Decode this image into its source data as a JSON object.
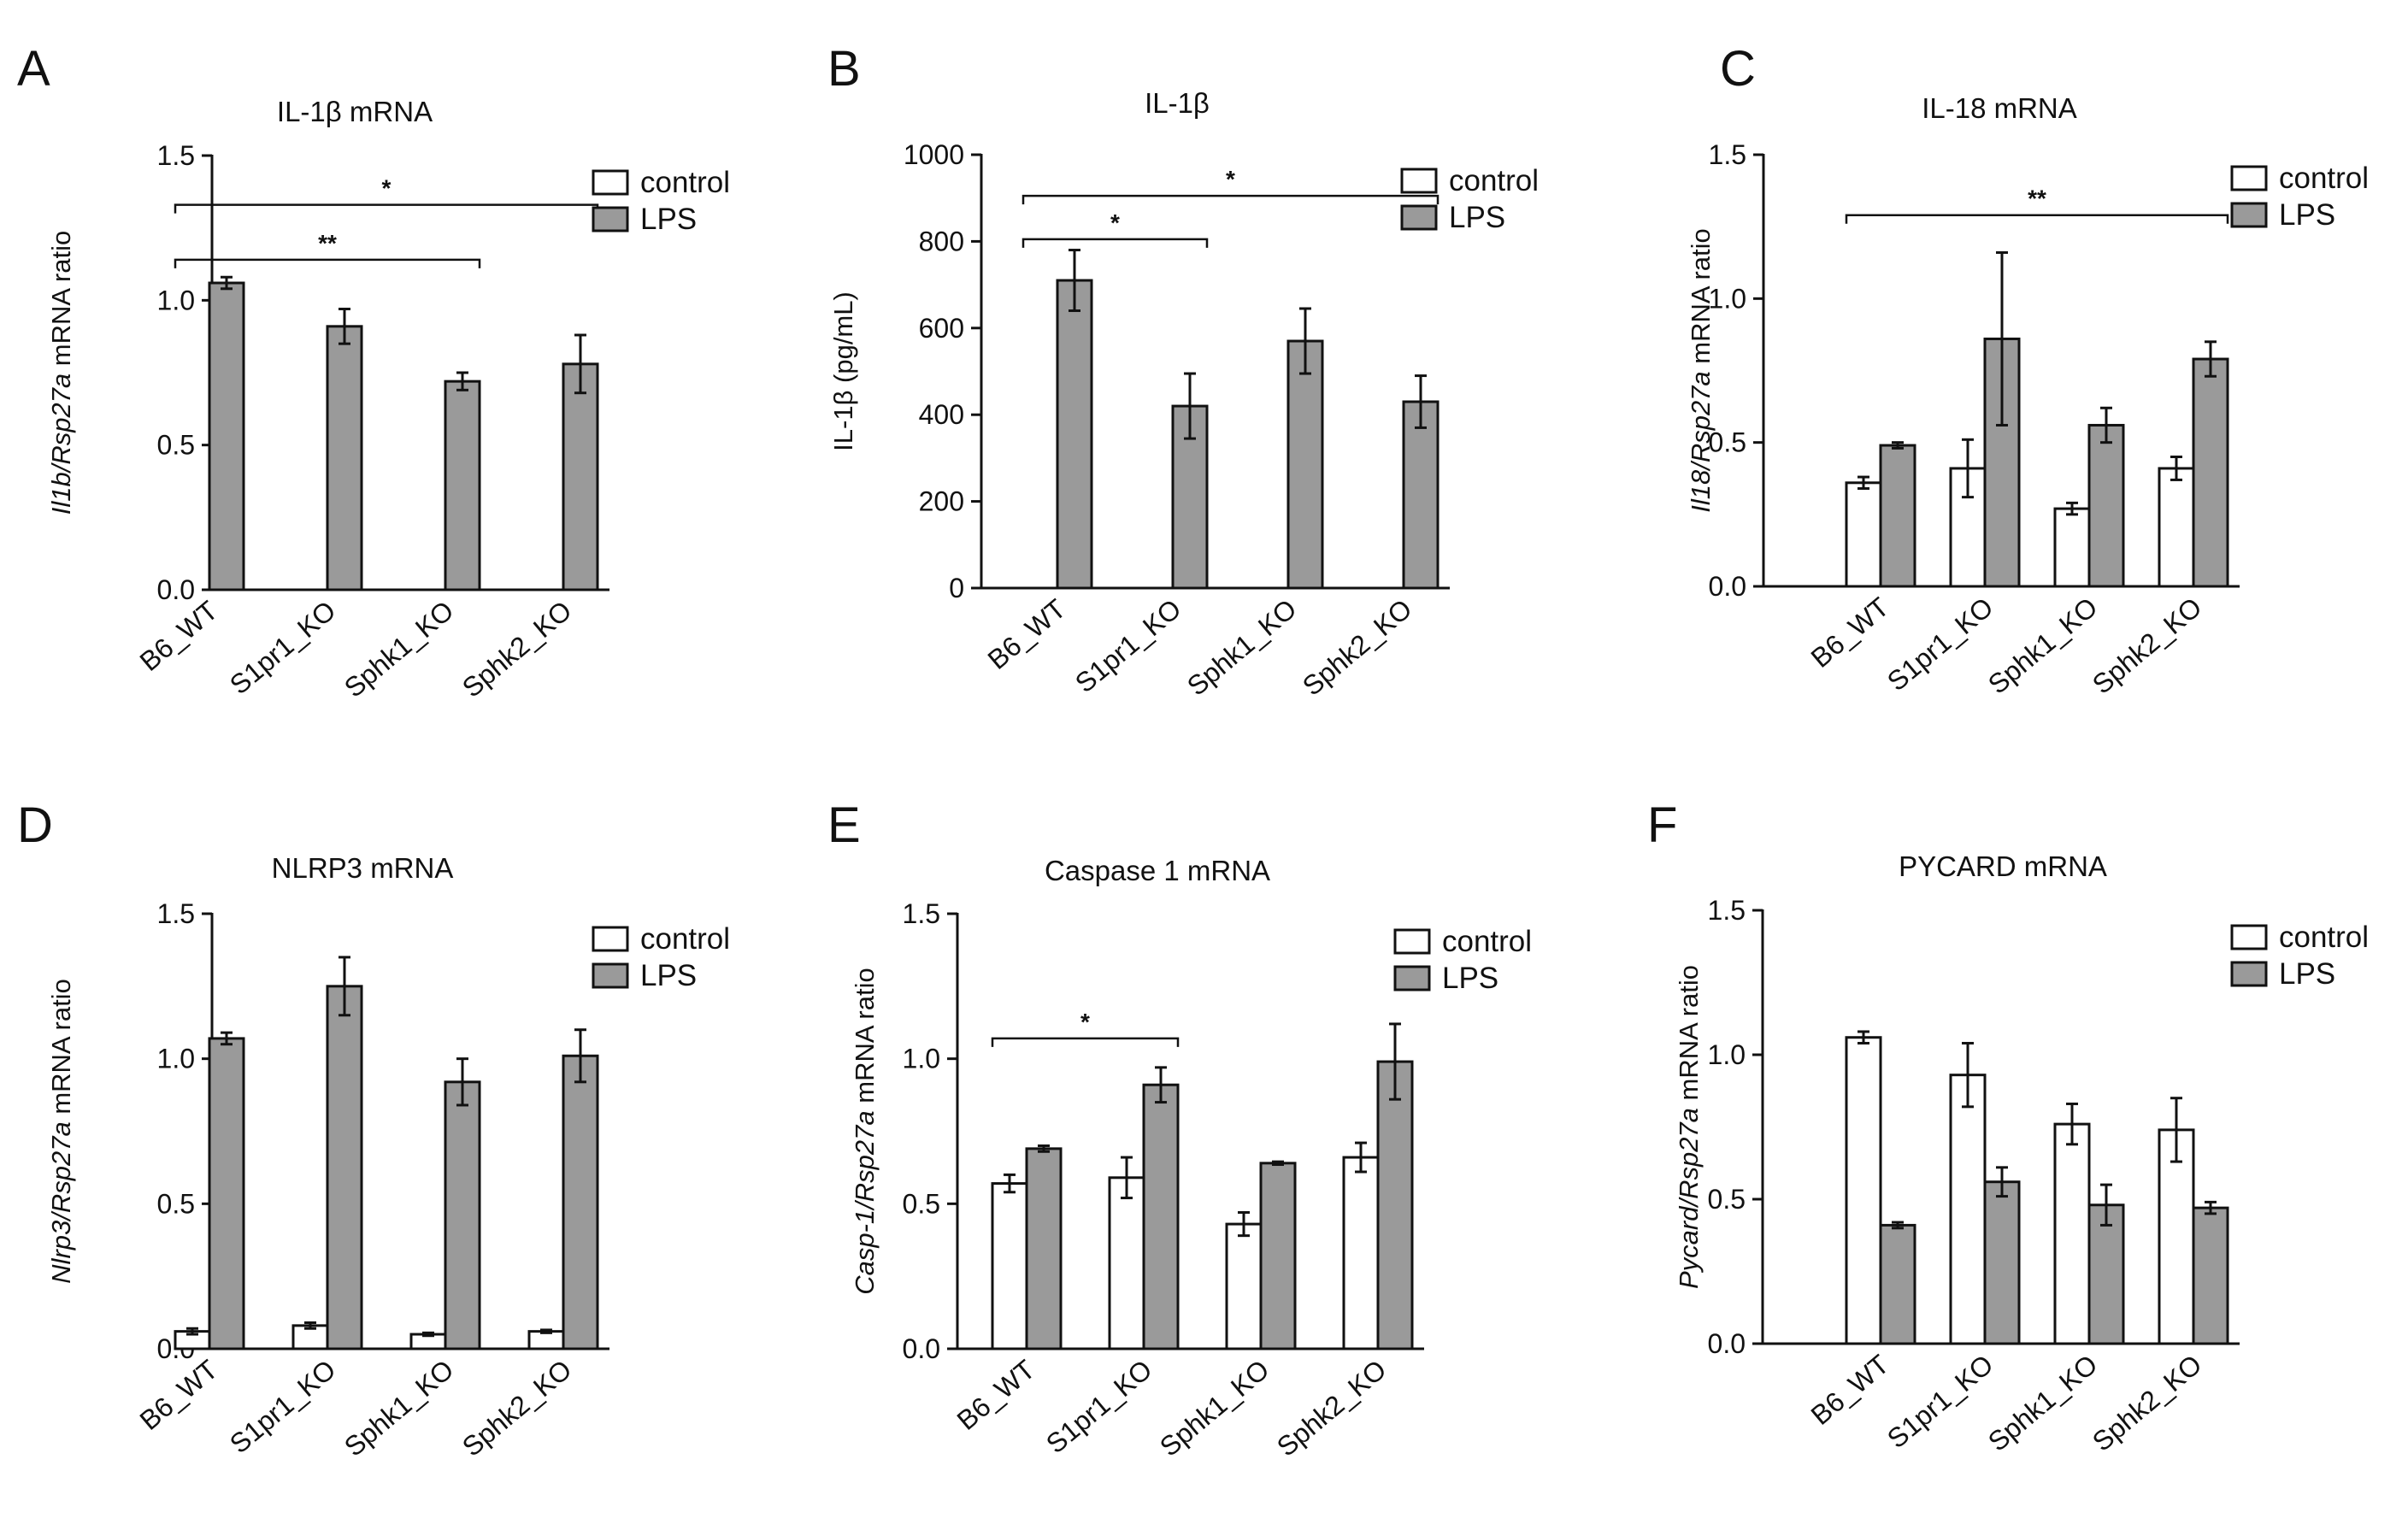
{
  "figure": {
    "legend_labels": [
      "control",
      "LPS"
    ],
    "colors": {
      "control": "#ffffff",
      "LPS": "#9a9a9a",
      "stroke": "#111111",
      "background": "#ffffff"
    }
  },
  "chart_data": [
    {
      "panel": "A",
      "type": "bar",
      "title": "IL-1β mRNA",
      "ylabel_parts": [
        {
          "text": "Il1b/Rsp27a",
          "italic": true
        },
        {
          "text": " mRNA ratio",
          "italic": false
        }
      ],
      "ylim": [
        0,
        1.5
      ],
      "yticks": [
        0,
        0.5,
        1.0,
        1.5
      ],
      "ytick_labels": [
        "0.0",
        "0.5",
        "1.0",
        "1.5"
      ],
      "categories": [
        "B6_WT",
        "S1pr1_KO",
        "Sphk1_KO",
        "Sphk2_KO"
      ],
      "series": [
        {
          "name": "control",
          "values": [
            0.0,
            0.0,
            0.0,
            0.0
          ],
          "errors": [
            0,
            0,
            0,
            0
          ]
        },
        {
          "name": "LPS",
          "values": [
            1.06,
            0.91,
            0.72,
            0.78
          ],
          "errors": [
            0.02,
            0.06,
            0.03,
            0.1
          ]
        }
      ],
      "significance": [
        {
          "from": 0,
          "to": 2,
          "y": 1.14,
          "label": "**"
        },
        {
          "from": 0,
          "to": 3,
          "y": 1.33,
          "label": "*"
        }
      ]
    },
    {
      "panel": "B",
      "type": "bar",
      "title": "IL-1β",
      "ylabel_parts": [
        {
          "text": "IL-1β (pg/mL)",
          "italic": false
        }
      ],
      "ylim": [
        0,
        1000
      ],
      "yticks": [
        0,
        200,
        400,
        600,
        800,
        1000
      ],
      "ytick_labels": [
        "0",
        "200",
        "400",
        "600",
        "800",
        "1000"
      ],
      "categories": [
        "B6_WT",
        "S1pr1_KO",
        "Sphk1_KO",
        "Sphk2_KO"
      ],
      "series": [
        {
          "name": "control",
          "values": [
            0,
            0,
            0,
            0
          ],
          "errors": [
            0,
            0,
            0,
            0
          ]
        },
        {
          "name": "LPS",
          "values": [
            710,
            420,
            570,
            430
          ],
          "errors": [
            70,
            75,
            75,
            60
          ]
        }
      ],
      "significance": [
        {
          "from": 0,
          "to": 1,
          "y": 805,
          "label": "*"
        },
        {
          "from": 0,
          "to": 3,
          "y": 905,
          "label": "*"
        }
      ]
    },
    {
      "panel": "C",
      "type": "bar",
      "title": "IL-18 mRNA",
      "ylabel_parts": [
        {
          "text": "Il18/Rsp27a",
          "italic": true
        },
        {
          "text": " mRNA ratio",
          "italic": false
        }
      ],
      "ylim": [
        0,
        1.5
      ],
      "yticks": [
        0,
        0.5,
        1.0,
        1.5
      ],
      "ytick_labels": [
        "0.0",
        "0.5",
        "1.0",
        "1.5"
      ],
      "categories": [
        "B6_WT",
        "S1pr1_KO",
        "Sphk1_KO",
        "Sphk2_KO"
      ],
      "series": [
        {
          "name": "control",
          "values": [
            0.36,
            0.41,
            0.27,
            0.41
          ],
          "errors": [
            0.02,
            0.1,
            0.02,
            0.04
          ]
        },
        {
          "name": "LPS",
          "values": [
            0.49,
            0.86,
            0.56,
            0.79
          ],
          "errors": [
            0.01,
            0.3,
            0.06,
            0.06
          ]
        }
      ],
      "significance": [
        {
          "from": 0,
          "to": 3,
          "y": 1.29,
          "label": "**"
        }
      ]
    },
    {
      "panel": "D",
      "type": "bar",
      "title": "NLRP3 mRNA",
      "ylabel_parts": [
        {
          "text": "Nlrp3/Rsp27a",
          "italic": true
        },
        {
          "text": " mRNA ratio",
          "italic": false
        }
      ],
      "ylim": [
        0,
        1.5
      ],
      "yticks": [
        0,
        0.5,
        1.0,
        1.5
      ],
      "ytick_labels": [
        "0.0",
        "0.5",
        "1.0",
        "1.5"
      ],
      "categories": [
        "B6_WT",
        "S1pr1_KO",
        "Sphk1_KO",
        "Sphk2_KO"
      ],
      "series": [
        {
          "name": "control",
          "values": [
            0.06,
            0.08,
            0.05,
            0.06
          ],
          "errors": [
            0.01,
            0.01,
            0.005,
            0.005
          ]
        },
        {
          "name": "LPS",
          "values": [
            1.07,
            1.25,
            0.92,
            1.01
          ],
          "errors": [
            0.02,
            0.1,
            0.08,
            0.09
          ]
        }
      ],
      "significance": []
    },
    {
      "panel": "E",
      "type": "bar",
      "title": "Caspase 1 mRNA",
      "ylabel_parts": [
        {
          "text": "Casp-1/Rsp27a",
          "italic": true
        },
        {
          "text": " mRNA ratio",
          "italic": false
        }
      ],
      "ylim": [
        0,
        1.5
      ],
      "yticks": [
        0,
        0.5,
        1.0,
        1.5
      ],
      "ytick_labels": [
        "0.0",
        "0.5",
        "1.0",
        "1.5"
      ],
      "categories": [
        "B6_WT",
        "S1pr1_KO",
        "Sphk1_KO",
        "Sphk2_KO"
      ],
      "series": [
        {
          "name": "control",
          "values": [
            0.57,
            0.59,
            0.43,
            0.66
          ],
          "errors": [
            0.03,
            0.07,
            0.04,
            0.05
          ]
        },
        {
          "name": "LPS",
          "values": [
            0.69,
            0.91,
            0.64,
            0.99
          ],
          "errors": [
            0.01,
            0.06,
            0.005,
            0.13
          ]
        }
      ],
      "significance": [
        {
          "from": 0,
          "to": 1,
          "y": 1.07,
          "label": "*"
        }
      ]
    },
    {
      "panel": "F",
      "type": "bar",
      "title": "PYCARD mRNA",
      "ylabel_parts": [
        {
          "text": "Pycard/Rsp27a",
          "italic": true
        },
        {
          "text": " mRNA ratio",
          "italic": false
        }
      ],
      "ylim": [
        0,
        1.5
      ],
      "yticks": [
        0,
        0.5,
        1.0,
        1.5
      ],
      "ytick_labels": [
        "0.0",
        "0.5",
        "1.0",
        "1.5"
      ],
      "categories": [
        "B6_WT",
        "S1pr1_KO",
        "Sphk1_KO",
        "Sphk2_KO"
      ],
      "series": [
        {
          "name": "control",
          "values": [
            1.06,
            0.93,
            0.76,
            0.74
          ],
          "errors": [
            0.02,
            0.11,
            0.07,
            0.11
          ]
        },
        {
          "name": "LPS",
          "values": [
            0.41,
            0.56,
            0.48,
            0.47
          ],
          "errors": [
            0.01,
            0.05,
            0.07,
            0.02
          ]
        }
      ],
      "significance": []
    }
  ]
}
